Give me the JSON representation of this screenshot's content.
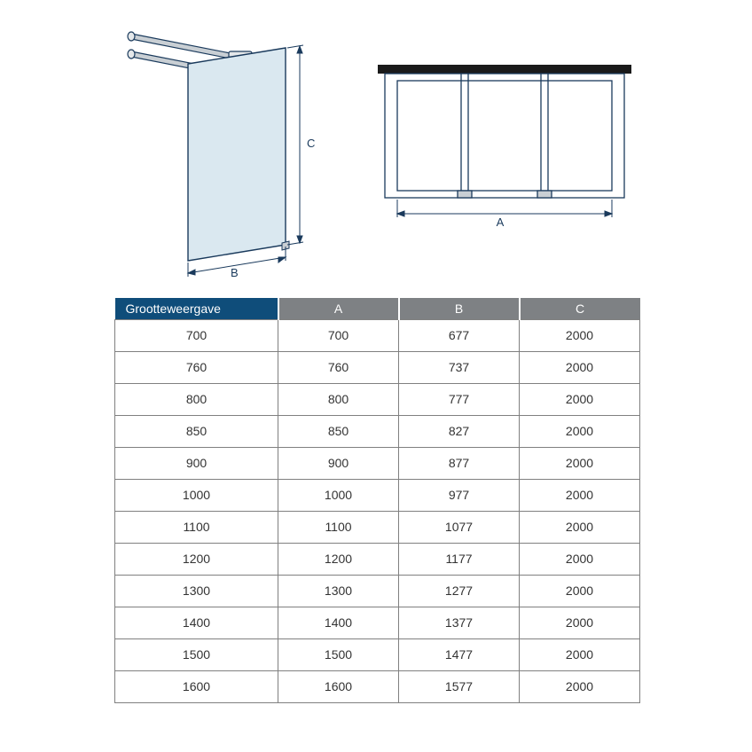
{
  "header": {
    "col0": "Grootteweergave",
    "col1": "A",
    "col2": "B",
    "col3": "C",
    "header_bg_first": "#0f4d7a",
    "header_bg_rest": "#7e8184",
    "header_text_color": "#ffffff"
  },
  "table": {
    "border_color": "#808080",
    "text_color": "#333333",
    "row_bg": "#ffffff",
    "font_size": 14,
    "rows": [
      [
        "700",
        "700",
        "677",
        "2000"
      ],
      [
        "760",
        "760",
        "737",
        "2000"
      ],
      [
        "800",
        "800",
        "777",
        "2000"
      ],
      [
        "850",
        "850",
        "827",
        "2000"
      ],
      [
        "900",
        "900",
        "877",
        "2000"
      ],
      [
        "1000",
        "1000",
        "977",
        "2000"
      ],
      [
        "1100",
        "1100",
        "1077",
        "2000"
      ],
      [
        "1200",
        "1200",
        "1177",
        "2000"
      ],
      [
        "1300",
        "1300",
        "1277",
        "2000"
      ],
      [
        "1400",
        "1400",
        "1377",
        "2000"
      ],
      [
        "1500",
        "1500",
        "1477",
        "2000"
      ],
      [
        "1600",
        "1600",
        "1577",
        "2000"
      ]
    ]
  },
  "diagram": {
    "label_A": "A",
    "label_B": "B",
    "label_C": "C",
    "line_color": "#1a3a5c",
    "glass_fill": "#dae8f0",
    "glass_stroke": "#1a3a5c",
    "bar_fill": "#c9cfd4",
    "cap_fill": "#e5e8ea",
    "top_view_stroke": "#1a3a5c",
    "top_view_wall": "#1a1a1a"
  }
}
